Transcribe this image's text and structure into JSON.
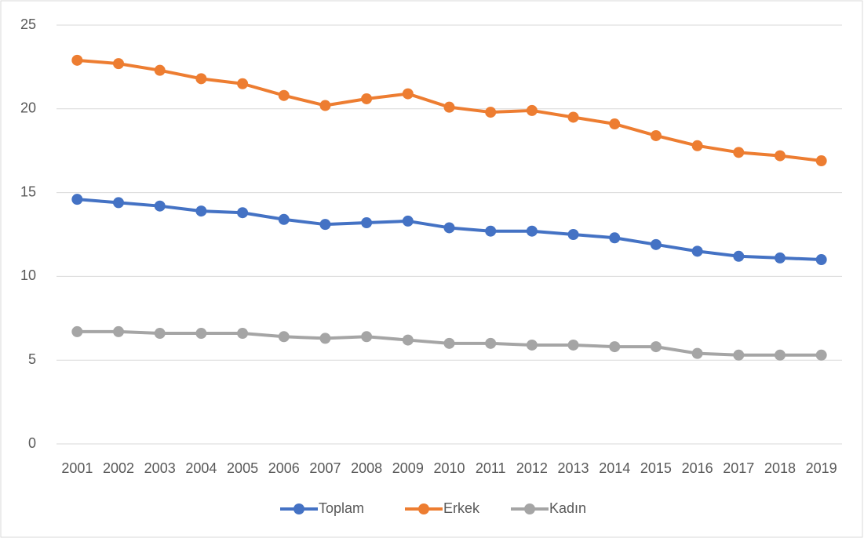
{
  "chart_data": {
    "type": "line",
    "x": [
      "2001",
      "2002",
      "2003",
      "2004",
      "2005",
      "2006",
      "2007",
      "2008",
      "2009",
      "2010",
      "2011",
      "2012",
      "2013",
      "2014",
      "2015",
      "2016",
      "2017",
      "2018",
      "2019"
    ],
    "series": [
      {
        "name": "Toplam",
        "color": "#4472C4",
        "values": [
          14.6,
          14.4,
          14.2,
          13.9,
          13.8,
          13.4,
          13.1,
          13.2,
          13.3,
          12.9,
          12.7,
          12.7,
          12.5,
          12.3,
          11.9,
          11.5,
          11.2,
          11.1,
          11.0
        ]
      },
      {
        "name": "Erkek",
        "color": "#ED7D31",
        "values": [
          22.9,
          22.7,
          22.3,
          21.8,
          21.5,
          20.8,
          20.2,
          20.6,
          20.9,
          20.1,
          19.8,
          19.9,
          19.5,
          19.1,
          18.4,
          17.8,
          17.4,
          17.2,
          16.9
        ]
      },
      {
        "name": "Kadın",
        "color": "#A5A5A5",
        "values": [
          6.7,
          6.7,
          6.6,
          6.6,
          6.6,
          6.4,
          6.3,
          6.4,
          6.2,
          6.0,
          6.0,
          5.9,
          5.9,
          5.8,
          5.8,
          5.4,
          5.3,
          5.3,
          5.3
        ]
      }
    ],
    "ylim": [
      0,
      25
    ],
    "yticks": [
      0,
      5,
      10,
      15,
      20,
      25
    ],
    "grid": true,
    "legend": "bottom"
  }
}
